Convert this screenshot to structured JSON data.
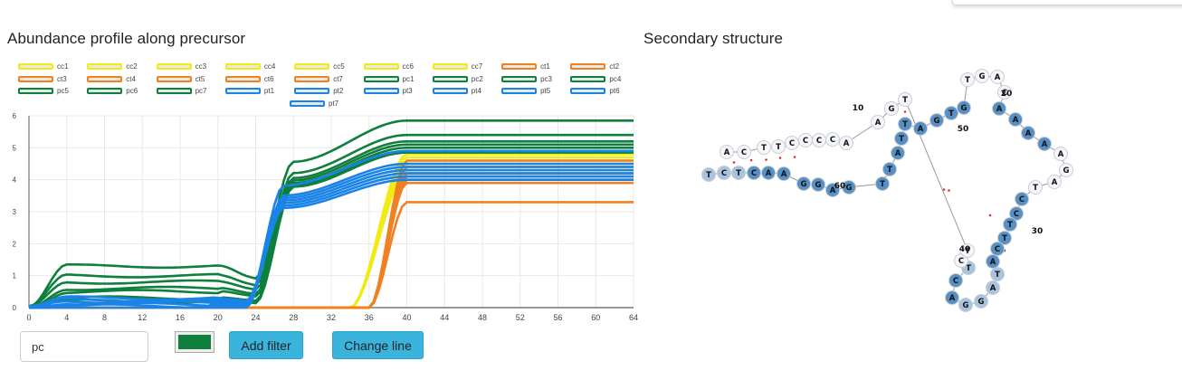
{
  "titles": {
    "abundance": "Abundance profile along precursor",
    "structure": "Secondary structure"
  },
  "colors": {
    "cc": "#f2ea13",
    "ct": "#f08020",
    "pc": "#0e7f3c",
    "pt": "#1a83e8",
    "swatch_fill": "#e4ebe4",
    "node_unpaired": "#f4f6f9",
    "node_paired_dark": "#5790c4",
    "node_paired_light": "#a8c3de",
    "button": "#3ab3dd"
  },
  "legend": [
    [
      "cc1",
      "cc2",
      "cc3",
      "cc4",
      "cc5",
      "cc6",
      "cc7",
      "ct1",
      "ct2"
    ],
    [
      "ct3",
      "ct4",
      "ct5",
      "ct6",
      "ct7",
      "pc1",
      "pc2",
      "pc3",
      "pc4"
    ],
    [
      "pc5",
      "pc6",
      "pc7",
      "pt1",
      "pt2",
      "pt3",
      "pt4",
      "pt5",
      "pt6"
    ],
    [
      "pt7"
    ]
  ],
  "chart_data": {
    "type": "line",
    "title": "Abundance profile along precursor",
    "xlabel": "",
    "ylabel": "",
    "x_ticks": [
      0,
      4,
      8,
      12,
      16,
      20,
      24,
      28,
      32,
      36,
      40,
      44,
      48,
      52,
      56,
      60,
      64
    ],
    "y_ticks": [
      0,
      1,
      2,
      3,
      4,
      5,
      6
    ],
    "xlim": [
      0,
      64
    ],
    "ylim": [
      0,
      6
    ],
    "grid": true,
    "legend_position": "top",
    "groups": [
      {
        "prefix": "cc",
        "color": "#f2ea13",
        "rise": [
          34,
          40
        ],
        "low": [
          0,
          0,
          0,
          0,
          0,
          0,
          0
        ],
        "high": [
          4.8,
          4.7,
          4.6,
          4.5,
          4.4,
          4.3,
          4.2
        ]
      },
      {
        "prefix": "ct",
        "color": "#f08020",
        "rise": [
          36,
          40
        ],
        "low": [
          0,
          0,
          0,
          0,
          0,
          0,
          0
        ],
        "high": [
          4.2,
          4.1,
          4.0,
          3.9,
          4.6,
          4.4,
          3.3
        ]
      },
      {
        "prefix": "pc",
        "color": "#0e7f3c",
        "rise": [
          24,
          40
        ],
        "low": [
          1.3,
          1.0,
          0.8,
          0.6,
          0.5,
          0.3,
          0.2
        ],
        "high": [
          5.85,
          5.4,
          5.2,
          5.1,
          5.0,
          4.9,
          4.85
        ]
      },
      {
        "prefix": "pt",
        "color": "#1a83e8",
        "rise": [
          23,
          40
        ],
        "low": [
          0.3,
          0.25,
          0.2,
          0.15,
          0.1,
          0.05,
          0.0
        ],
        "high": [
          4.3,
          4.2,
          4.1,
          4.0,
          4.9,
          4.5,
          4.4
        ]
      }
    ]
  },
  "structure": {
    "sequence": "TCTCAAGGAGTTATTAGTGTGACAAAAAGATCCTTCATAGGACTCTTGAACCCCTTCA",
    "labels": [
      "10",
      "20",
      "30",
      "40",
      "50",
      "60"
    ]
  },
  "controls": {
    "filter_value": "pc",
    "filter_placeholder": "",
    "color_value": "#0e7f3c",
    "add_filter": "Add filter",
    "change_line": "Change line"
  }
}
